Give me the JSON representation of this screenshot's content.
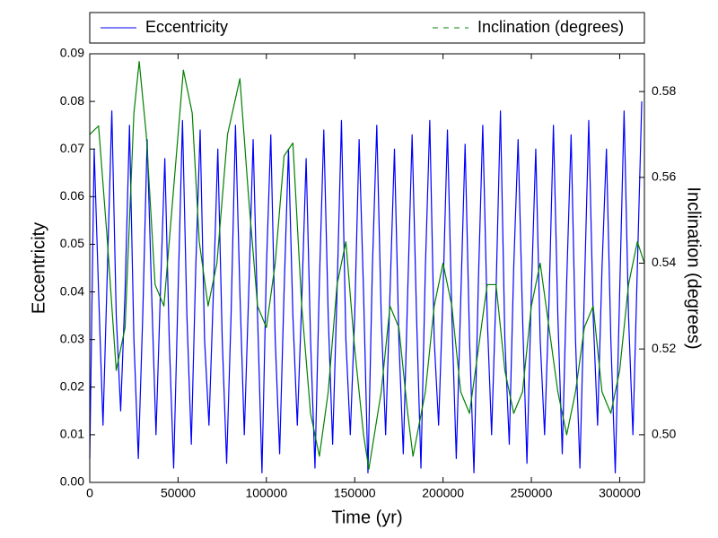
{
  "chart_data": {
    "type": "line",
    "xlabel": "Time (yr)",
    "ylabel": "Eccentricity",
    "y2label": "Inclination (degrees)",
    "xlim": [
      0,
      314000
    ],
    "xticks": [
      0,
      50000,
      100000,
      150000,
      200000,
      250000,
      300000
    ],
    "ylim": [
      0,
      0.09
    ],
    "yticks": [
      {
        "value": 0,
        "label": "0.00"
      },
      {
        "value": 0.01,
        "label": "0.01"
      },
      {
        "value": 0.02,
        "label": "0.02"
      },
      {
        "value": 0.03,
        "label": "0.03"
      },
      {
        "value": 0.04,
        "label": "0.04"
      },
      {
        "value": 0.05,
        "label": "0.05"
      },
      {
        "value": 0.06,
        "label": "0.06"
      },
      {
        "value": 0.07,
        "label": "0.07"
      },
      {
        "value": 0.08,
        "label": "0.08"
      },
      {
        "value": 0.09,
        "label": "0.09"
      }
    ],
    "y2lim": [
      0.4889,
      0.5888
    ],
    "y2ticks": [
      {
        "value": 0.5,
        "label": "0.50"
      },
      {
        "value": 0.52,
        "label": "0.52"
      },
      {
        "value": 0.54,
        "label": "0.54"
      },
      {
        "value": 0.56,
        "label": "0.56"
      },
      {
        "value": 0.58,
        "label": "0.58"
      }
    ],
    "legend": "top",
    "series": [
      {
        "name": "Eccentricity",
        "color": "#0000ff",
        "x": [
          0,
          2500,
          5000,
          7500,
          10000,
          12500,
          15000,
          17500,
          20000,
          22500,
          25000,
          27500,
          30000,
          32500,
          35000,
          37500,
          40000,
          42500,
          45000,
          47500,
          50000,
          52500,
          55000,
          57500,
          60000,
          62500,
          65000,
          67500,
          70000,
          72500,
          75000,
          77500,
          80000,
          82500,
          85000,
          87500,
          90000,
          92500,
          95000,
          97500,
          100000,
          102500,
          105000,
          107500,
          110000,
          112500,
          115000,
          117500,
          120000,
          122500,
          125000,
          127500,
          130000,
          132500,
          135000,
          137500,
          140000,
          142500,
          145000,
          147500,
          150000,
          152500,
          155000,
          157500,
          160000,
          162500,
          165000,
          167500,
          170000,
          172500,
          175000,
          177500,
          180000,
          182500,
          185000,
          187500,
          190000,
          192500,
          195000,
          197500,
          200000,
          202500,
          205000,
          207500,
          210000,
          212500,
          215000,
          217500,
          220000,
          222500,
          225000,
          227500,
          230000,
          232500,
          235000,
          237500,
          240000,
          242500,
          245000,
          247500,
          250000,
          252500,
          255000,
          257500,
          260000,
          262500,
          265000,
          267500,
          270000,
          272500,
          275000,
          277500,
          280000,
          282500,
          285000,
          287500,
          290000,
          292500,
          295000,
          297500,
          300000,
          302500,
          305000,
          307500,
          310000,
          312500
        ],
        "values": [
          0.005,
          0.07,
          0.04,
          0.012,
          0.045,
          0.078,
          0.035,
          0.015,
          0.04,
          0.075,
          0.03,
          0.005,
          0.035,
          0.072,
          0.04,
          0.01,
          0.04,
          0.068,
          0.03,
          0.003,
          0.04,
          0.076,
          0.035,
          0.008,
          0.045,
          0.074,
          0.03,
          0.012,
          0.04,
          0.07,
          0.03,
          0.004,
          0.035,
          0.075,
          0.04,
          0.01,
          0.04,
          0.072,
          0.035,
          0.002,
          0.045,
          0.073,
          0.03,
          0.006,
          0.04,
          0.07,
          0.035,
          0.012,
          0.038,
          0.068,
          0.03,
          0.003,
          0.042,
          0.074,
          0.035,
          0.008,
          0.04,
          0.076,
          0.03,
          0.01,
          0.035,
          0.072,
          0.04,
          0.002,
          0.045,
          0.075,
          0.035,
          0.01,
          0.04,
          0.07,
          0.03,
          0.006,
          0.04,
          0.073,
          0.035,
          0.003,
          0.045,
          0.076,
          0.03,
          0.012,
          0.04,
          0.074,
          0.035,
          0.005,
          0.038,
          0.071,
          0.03,
          0.002,
          0.042,
          0.075,
          0.035,
          0.01,
          0.04,
          0.078,
          0.03,
          0.008,
          0.045,
          0.072,
          0.035,
          0.004,
          0.04,
          0.07,
          0.03,
          0.01,
          0.038,
          0.075,
          0.035,
          0.006,
          0.042,
          0.073,
          0.03,
          0.003,
          0.04,
          0.076,
          0.035,
          0.012,
          0.045,
          0.07,
          0.03,
          0.002,
          0.04,
          0.078,
          0.035,
          0.01,
          0.045,
          0.08
        ]
      },
      {
        "name": "Inclination (degrees)",
        "color": "#008000",
        "axis": "y2",
        "x": [
          0,
          5000,
          10000,
          15000,
          20000,
          25000,
          28000,
          32000,
          37000,
          42000,
          47000,
          53000,
          58000,
          62000,
          67000,
          72000,
          78000,
          85000,
          90000,
          95000,
          100000,
          105000,
          110000,
          115000,
          120000,
          125000,
          130000,
          135000,
          140000,
          145000,
          150000,
          155000,
          158000,
          165000,
          170000,
          175000,
          180000,
          183000,
          190000,
          195000,
          200000,
          205000,
          210000,
          215000,
          220000,
          225000,
          230000,
          235000,
          240000,
          245000,
          250000,
          255000,
          260000,
          265000,
          270000,
          275000,
          280000,
          285000,
          290000,
          295000,
          300000,
          305000,
          310000,
          314000
        ],
        "values": [
          0.57,
          0.572,
          0.545,
          0.515,
          0.525,
          0.575,
          0.587,
          0.57,
          0.535,
          0.53,
          0.555,
          0.585,
          0.575,
          0.545,
          0.53,
          0.54,
          0.57,
          0.583,
          0.555,
          0.53,
          0.525,
          0.54,
          0.565,
          0.568,
          0.53,
          0.505,
          0.495,
          0.51,
          0.535,
          0.545,
          0.52,
          0.5,
          0.492,
          0.51,
          0.53,
          0.525,
          0.505,
          0.495,
          0.51,
          0.53,
          0.54,
          0.53,
          0.51,
          0.505,
          0.52,
          0.535,
          0.535,
          0.515,
          0.505,
          0.51,
          0.53,
          0.54,
          0.525,
          0.51,
          0.5,
          0.51,
          0.525,
          0.53,
          0.51,
          0.505,
          0.515,
          0.535,
          0.545,
          0.54
        ]
      }
    ]
  }
}
